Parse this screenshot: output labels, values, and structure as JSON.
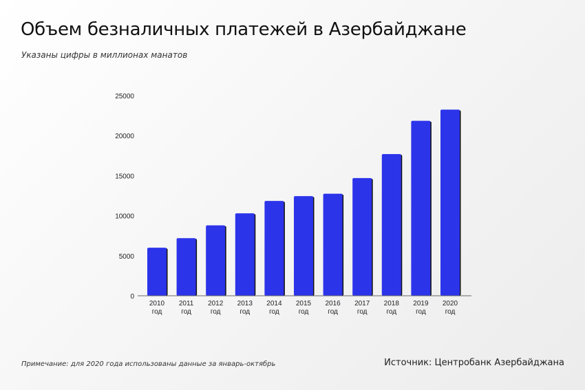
{
  "title": "Объем безналичных платежей в Азербайджане",
  "subtitle": "Указаны цифры в миллионах манатов",
  "note": "Примечание: для 2020 года использованы данные за январь-октябрь",
  "source": "Источник: Центробанк Азербайджана",
  "chart_data": {
    "type": "bar",
    "title": "Объем безналичных платежей в Азербайджане",
    "categories": [
      "2010 год",
      "2011 год",
      "2012 год",
      "2013 год",
      "2014 год",
      "2015 год",
      "2016 год",
      "2017 год",
      "2018 год",
      "2019 год",
      "2020 год"
    ],
    "values": [
      6000,
      7200,
      8800,
      10300,
      11850,
      12450,
      12750,
      14700,
      17700,
      21850,
      23250
    ],
    "ylim": [
      0,
      25000
    ],
    "yticks": [
      0,
      5000,
      10000,
      15000,
      20000,
      25000
    ],
    "grid": false,
    "color": "#2c34ea"
  }
}
